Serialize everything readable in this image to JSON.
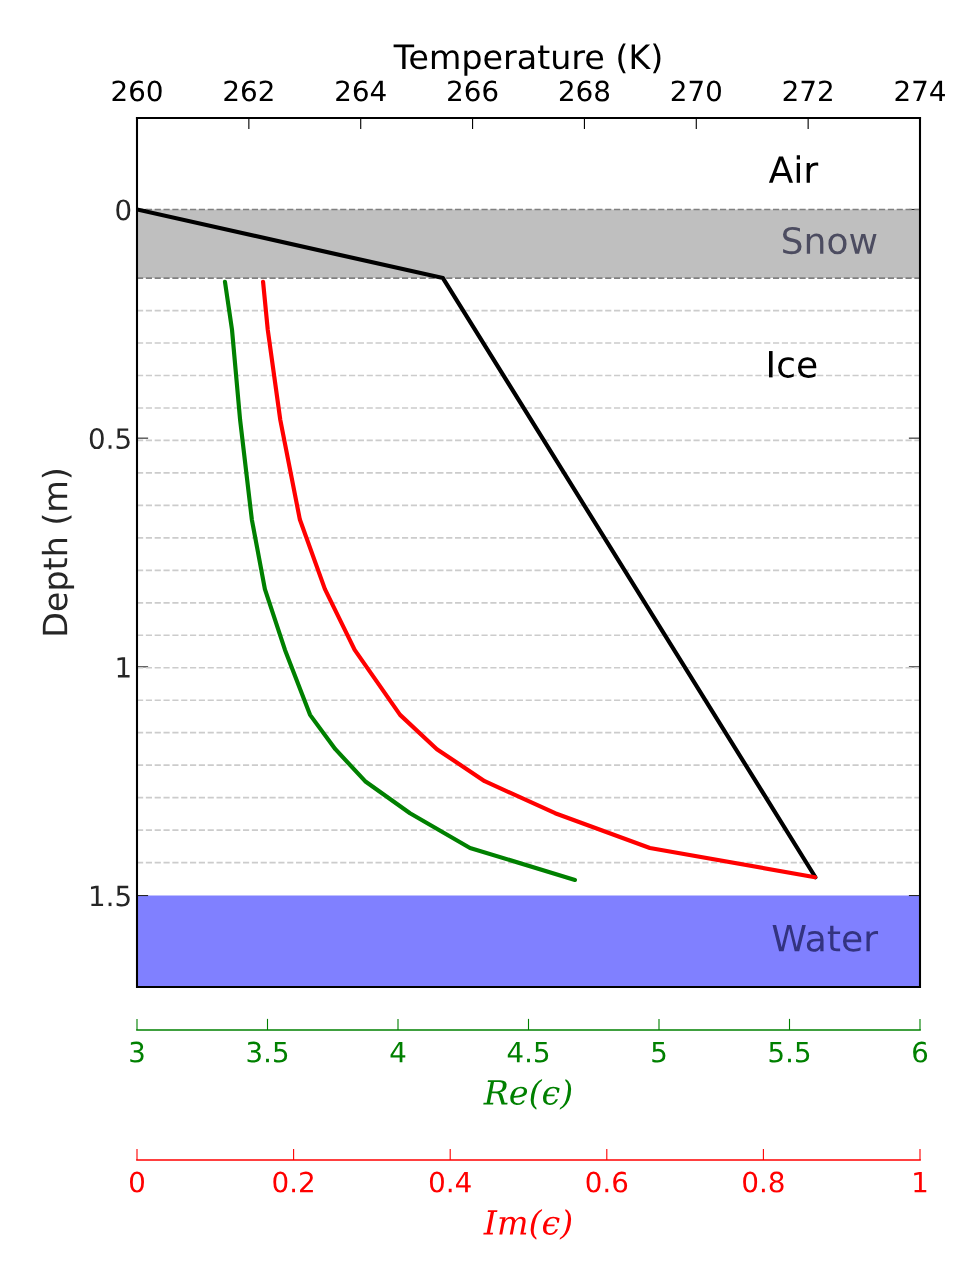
{
  "chart_data": [
    {
      "type": "line",
      "ylabel": "Depth (m)",
      "ylim": [
        1.7,
        -0.2
      ],
      "yticks": [
        0,
        0.5,
        1,
        1.5
      ],
      "xlabel": "Re(ϵ)",
      "xlim": [
        3,
        6
      ],
      "xticks": [
        3,
        3.5,
        4,
        4.5,
        5,
        5.5,
        6
      ],
      "x2label": "Temperature (K)",
      "x2lim": [
        260,
        274
      ],
      "x2ticks": [
        260,
        262,
        264,
        266,
        268,
        270,
        272,
        274
      ],
      "grid": false,
      "marker": "none",
      "line_style": "solid",
      "series": [
        {
          "axis": "x2",
          "color": "#000000",
          "x": [
            260,
            265.47,
            272.13
          ],
          "values": [
            0,
            0.15,
            1.46
          ]
        },
        {
          "color": "#008000",
          "x": [
            3.337,
            3.364,
            3.395,
            3.44,
            3.49,
            3.567,
            3.663,
            3.76,
            3.874,
            4.046,
            4.276,
            4.678
          ],
          "values": [
            0.158,
            0.263,
            0.46,
            0.678,
            0.83,
            0.963,
            1.105,
            1.18,
            1.25,
            1.32,
            1.396,
            1.466
          ]
        }
      ],
      "bands": [
        {
          "axis": "y",
          "from": 0,
          "to": 0.15,
          "label": "Snow",
          "color": "#bfbfbf"
        },
        {
          "axis": "y",
          "from": 1.5,
          "to": 1.7,
          "label": "Water",
          "color": "#8080ff"
        }
      ],
      "ref_lines": [
        {
          "axis": "y",
          "value": 0,
          "color": "#808080",
          "line_style": "dashed"
        },
        {
          "axis": "y",
          "value": 0.15,
          "color": "#808080",
          "line_style": "dashed"
        },
        {
          "axis": "y",
          "value": 0.221,
          "color": "#cccccc",
          "line_style": "dashed"
        },
        {
          "axis": "y",
          "value": 0.292,
          "color": "#cccccc",
          "line_style": "dashed"
        },
        {
          "axis": "y",
          "value": 0.363,
          "color": "#cccccc",
          "line_style": "dashed"
        },
        {
          "axis": "y",
          "value": 0.434,
          "color": "#cccccc",
          "line_style": "dashed"
        },
        {
          "axis": "y",
          "value": 0.505,
          "color": "#cccccc",
          "line_style": "dashed"
        },
        {
          "axis": "y",
          "value": 0.576,
          "color": "#cccccc",
          "line_style": "dashed"
        },
        {
          "axis": "y",
          "value": 0.647,
          "color": "#cccccc",
          "line_style": "dashed"
        },
        {
          "axis": "y",
          "value": 0.718,
          "color": "#cccccc",
          "line_style": "dashed"
        },
        {
          "axis": "y",
          "value": 0.789,
          "color": "#cccccc",
          "line_style": "dashed"
        },
        {
          "axis": "y",
          "value": 0.86,
          "color": "#cccccc",
          "line_style": "dashed"
        },
        {
          "axis": "y",
          "value": 0.931,
          "color": "#cccccc",
          "line_style": "dashed"
        },
        {
          "axis": "y",
          "value": 1.002,
          "color": "#cccccc",
          "line_style": "dashed"
        },
        {
          "axis": "y",
          "value": 1.073,
          "color": "#cccccc",
          "line_style": "dashed"
        },
        {
          "axis": "y",
          "value": 1.144,
          "color": "#cccccc",
          "line_style": "dashed"
        },
        {
          "axis": "y",
          "value": 1.215,
          "color": "#cccccc",
          "line_style": "dashed"
        },
        {
          "axis": "y",
          "value": 1.286,
          "color": "#cccccc",
          "line_style": "dashed"
        },
        {
          "axis": "y",
          "value": 1.357,
          "color": "#cccccc",
          "line_style": "dashed"
        },
        {
          "axis": "y",
          "value": 1.428,
          "color": "#cccccc",
          "line_style": "dashed"
        }
      ],
      "annotations": [
        "Air",
        "Ice"
      ]
    },
    {
      "type": "line",
      "xlabel": "Im(ϵ)",
      "xlim": [
        0,
        1
      ],
      "xticks": [
        0,
        0.2,
        0.4,
        0.6,
        0.8,
        1
      ],
      "ylim": [
        1.7,
        -0.2
      ],
      "tick_labels": "x",
      "series": [
        {
          "color": "#ff0000",
          "x": [
            0.161,
            0.167,
            0.183,
            0.208,
            0.24,
            0.278,
            0.336,
            0.383,
            0.444,
            0.534,
            0.655,
            0.866
          ],
          "values": [
            0.158,
            0.263,
            0.46,
            0.678,
            0.83,
            0.963,
            1.105,
            1.18,
            1.25,
            1.32,
            1.396,
            1.46
          ]
        }
      ]
    }
  ]
}
